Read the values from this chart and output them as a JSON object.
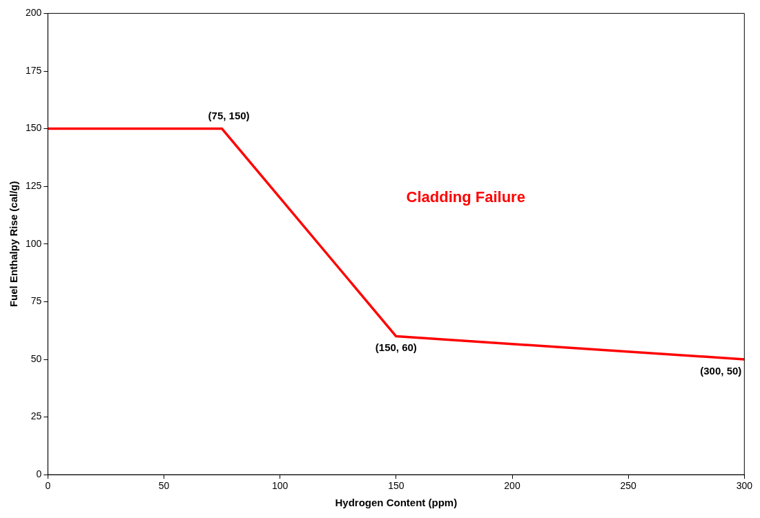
{
  "chart_data": {
    "type": "line",
    "xlabel": "Hydrogen Content (ppm)",
    "ylabel": "Fuel Enthalpy Rise (cal/g)",
    "x": [
      0,
      75,
      150,
      300
    ],
    "series": [
      {
        "color": "#ff0000",
        "values": [
          150,
          150,
          60,
          50
        ]
      }
    ],
    "xlim": [
      0,
      300
    ],
    "xticks": [
      0,
      50,
      100,
      150,
      200,
      250,
      300
    ],
    "ylim": [
      0,
      200
    ],
    "yticks": [
      0,
      25,
      50,
      75,
      100,
      125,
      150,
      175,
      200
    ],
    "grid": false,
    "legend": false,
    "marker": "none",
    "line_style": "solid",
    "annotations": [
      {
        "text": "(75, 150)",
        "x": 75,
        "y": 150
      },
      {
        "text": "(150, 60)",
        "x": 150,
        "y": 60
      },
      {
        "text": "(300, 50)",
        "x": 300,
        "y": 50
      },
      "Cladding Failure"
    ]
  }
}
